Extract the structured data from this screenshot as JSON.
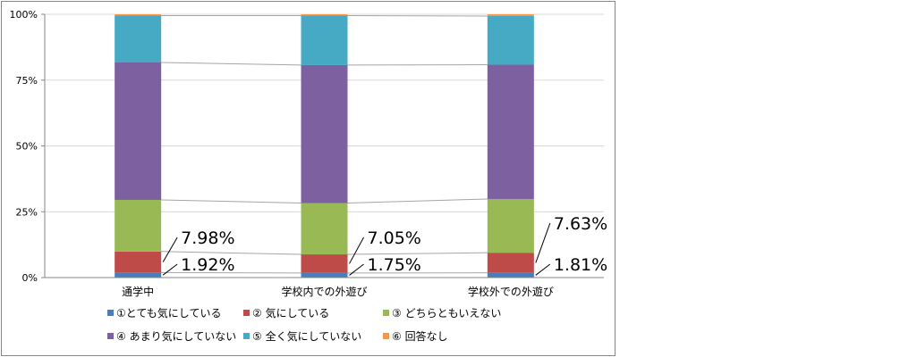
{
  "chart_data": {
    "type": "bar",
    "stacked": true,
    "percent_stacked": true,
    "categories": [
      "通学中",
      "学校内での外遊び",
      "学校外での外遊び"
    ],
    "series": [
      {
        "name": "①とても気にしている",
        "color": "#4A7EBB",
        "values": [
          1.92,
          1.75,
          1.81
        ]
      },
      {
        "name": "② 気にしている",
        "color": "#BE4B48",
        "values": [
          7.98,
          7.05,
          7.63
        ]
      },
      {
        "name": "③ どちらともいえない",
        "color": "#98B954",
        "values": [
          19.6,
          19.5,
          20.4
        ]
      },
      {
        "name": "④ あまり気にしていない",
        "color": "#7D60A0",
        "values": [
          52.2,
          52.4,
          51.0
        ]
      },
      {
        "name": "⑤ 全く気にしていない",
        "color": "#46AAC5",
        "values": [
          17.8,
          18.8,
          18.5
        ]
      },
      {
        "name": "⑥ 回答なし",
        "color": "#F79646",
        "values": [
          0.5,
          0.5,
          0.66
        ]
      }
    ],
    "data_labels": [
      {
        "series": 0,
        "category": 0,
        "text": "1.92%"
      },
      {
        "series": 1,
        "category": 0,
        "text": "7.98%"
      },
      {
        "series": 0,
        "category": 1,
        "text": "1.75%"
      },
      {
        "series": 1,
        "category": 1,
        "text": "7.05%"
      },
      {
        "series": 0,
        "category": 2,
        "text": "1.81%"
      },
      {
        "series": 1,
        "category": 2,
        "text": "7.63%"
      }
    ],
    "yticks": [
      "0%",
      "25%",
      "50%",
      "75%",
      "100%"
    ],
    "ylim": [
      0,
      100
    ],
    "series_lines": true,
    "legend_position": "bottom"
  }
}
